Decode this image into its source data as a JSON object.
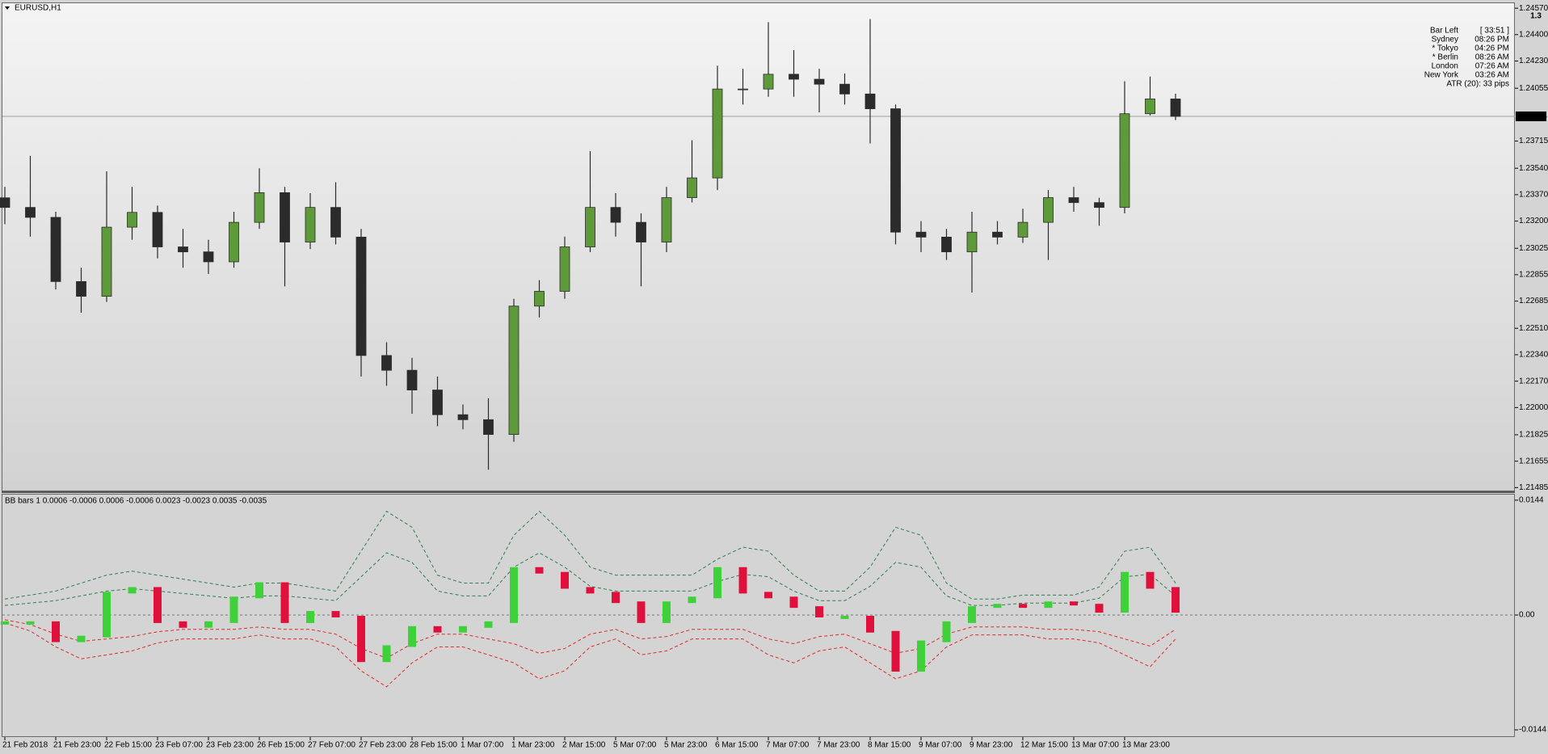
{
  "chart_data": [
    {
      "type": "candlestick",
      "title": "EURUSD,H1",
      "open": [
        1.2335,
        1.23288,
        1.23224,
        1.22811,
        1.22716,
        1.23161,
        1.23256,
        1.23034,
        1.23002,
        1.22938,
        1.23192,
        1.23383,
        1.23065,
        1.23288,
        1.23097,
        1.22335,
        1.2224,
        1.22113,
        1.21954,
        1.21922,
        1.21827,
        1.22653,
        1.22748,
        1.23034,
        1.23288,
        1.23192,
        1.23065,
        1.23351,
        1.23478,
        1.2405,
        1.2405,
        1.24145,
        1.24113,
        1.24081,
        1.24018,
        1.23923,
        1.23129,
        1.23097,
        1.23002,
        1.23129,
        1.23097,
        1.23192,
        1.23351,
        1.23319,
        1.23288,
        1.23891,
        1.23986
      ],
      "high": [
        1.2342,
        1.2362,
        1.2326,
        1.229,
        1.2352,
        1.2342,
        1.233,
        1.2315,
        1.2308,
        1.2326,
        1.2354,
        1.2342,
        1.2338,
        1.2345,
        1.2315,
        1.2242,
        1.2232,
        1.222,
        1.2202,
        1.2206,
        1.227,
        1.2282,
        1.231,
        1.2365,
        1.2338,
        1.2325,
        1.2342,
        1.2372,
        1.242,
        1.2418,
        1.2448,
        1.243,
        1.2418,
        1.2415,
        1.245,
        1.2395,
        1.232,
        1.2315,
        1.2326,
        1.232,
        1.2328,
        1.234,
        1.2342,
        1.2335,
        1.241,
        1.2413,
        1.2402
      ],
      "low": [
        1.2318,
        1.231,
        1.2276,
        1.2261,
        1.2268,
        1.2308,
        1.2296,
        1.229,
        1.2286,
        1.229,
        1.2315,
        1.2278,
        1.2302,
        1.2305,
        1.222,
        1.2214,
        1.2196,
        1.2188,
        1.2186,
        1.216,
        1.2178,
        1.2258,
        1.227,
        1.23,
        1.231,
        1.2278,
        1.23,
        1.2332,
        1.234,
        1.2395,
        1.24,
        1.24,
        1.239,
        1.2395,
        1.237,
        1.2305,
        1.23,
        1.2295,
        1.2274,
        1.2305,
        1.2306,
        1.2295,
        1.2326,
        1.2317,
        1.2325,
        1.2388,
        1.2385
      ],
      "close": [
        1.23288,
        1.23224,
        1.22811,
        1.22716,
        1.23161,
        1.23256,
        1.23034,
        1.23002,
        1.22938,
        1.23192,
        1.23383,
        1.23065,
        1.23288,
        1.23097,
        1.22335,
        1.2224,
        1.22113,
        1.21954,
        1.21922,
        1.21827,
        1.22653,
        1.22748,
        1.23034,
        1.23288,
        1.23192,
        1.23065,
        1.23351,
        1.23478,
        1.2405,
        1.2405,
        1.24145,
        1.24113,
        1.24081,
        1.24018,
        1.23923,
        1.23129,
        1.23097,
        1.23002,
        1.23129,
        1.23097,
        1.23192,
        1.23351,
        1.23319,
        1.23288,
        1.23891,
        1.23986,
        1.23874
      ],
      "bull_color": "#5f9a3a",
      "bear_color": "#2b2b2b",
      "ylim": [
        1.21466,
        1.24602
      ],
      "yticks": [
        {
          "value": 1.2457,
          "label": "1.24570"
        },
        {
          "value": 1.244,
          "label": "1.24400"
        },
        {
          "value": 1.2423,
          "label": "1.24230"
        },
        1.24055,
        1.23715,
        {
          "value": 1.2354,
          "label": "1.23540"
        },
        {
          "value": 1.2337,
          "label": "1.23370"
        },
        {
          "value": 1.232,
          "label": "1.23200"
        },
        1.23025,
        1.22855,
        1.22685,
        {
          "value": 1.2251,
          "label": "1.22510"
        },
        {
          "value": 1.2234,
          "label": "1.22340"
        },
        {
          "value": 1.2217,
          "label": "1.22170"
        },
        {
          "value": 1.22,
          "label": "1.22000"
        },
        1.21825,
        1.21655,
        1.21485
      ],
      "current_price": 1.23874,
      "info": {
        "big_label": "1.3",
        "timer_label": "Bar Left",
        "timer": "[ 33:51 ]",
        "sessions": [
          {
            "label": "Sydney",
            "time": "08:26 PM",
            "color": "#a8a8a8"
          },
          {
            "label": "* Tokyo",
            "time": "04:26 PM",
            "color": "#ff0000"
          },
          {
            "label": "* Berlin",
            "time": "08:26 AM",
            "color": "#ff0000"
          },
          {
            "label": "London",
            "time": "07:26 AM",
            "color": "#a8a8a8"
          },
          {
            "label": "New York",
            "time": "03:26 AM",
            "color": "#a8a8a8"
          }
        ],
        "atr": "ATR (20): 33 pips"
      }
    },
    {
      "type": "bar",
      "title": "BB bars 1 0.0006 -0.0006 0.0006 -0.0006 0.0023 -0.0023 0.0035 -0.0035",
      "categories": [
        "21 Feb 2018",
        null,
        "21 Feb 23:00",
        null,
        "22 Feb 15:00",
        null,
        "23 Feb 07:00",
        null,
        "23 Feb 23:00",
        null,
        "26 Feb 15:00",
        null,
        "27 Feb 07:00",
        null,
        "27 Feb 23:00",
        null,
        "28 Feb 15:00",
        null,
        "1 Mar 07:00",
        null,
        "1 Mar 23:00",
        null,
        "2 Mar 15:00",
        null,
        "5 Mar 07:00",
        null,
        "5 Mar 23:00",
        null,
        "6 Mar 15:00",
        null,
        "7 Mar 07:00",
        null,
        "7 Mar 23:00",
        null,
        "8 Mar 15:00",
        null,
        "9 Mar 07:00",
        null,
        "9 Mar 23:00",
        null,
        "12 Mar 15:00",
        null,
        "13 Mar 07:00",
        null,
        "13 Mar 23:00",
        null,
        null
      ],
      "values": [
        -0.0009,
        -0.0009,
        -0.0033,
        -0.0027,
        0.0028,
        0.0034,
        -0.0009,
        -0.0015,
        -0.0009,
        0.0022,
        0.004,
        -0.0009,
        0.0004,
        -0.0002,
        -0.0058,
        -0.0039,
        -0.0015,
        -0.0021,
        -0.0015,
        -0.0009,
        0.0059,
        0.0053,
        0.0034,
        0.0028,
        0.0016,
        -0.0009,
        0.0016,
        0.0022,
        0.0059,
        0.0028,
        0.0022,
        0.001,
        -0.0002,
        -0.0002,
        -0.0021,
        -0.007,
        -0.0033,
        -0.0009,
        0.001,
        0.0013,
        0.001,
        0.0016,
        0.0013,
        0.0004,
        0.0053,
        0.0034,
        0.0004
      ],
      "up_color": "#3fd13a",
      "down_color": "#e0103c",
      "bands": [
        {
          "color": "#2e7d4f",
          "values": [
            0.002,
            0.0025,
            0.003,
            0.004,
            0.005,
            0.0055,
            0.005,
            0.0045,
            0.004,
            0.0035,
            0.004,
            0.004,
            0.0035,
            0.003,
            0.008,
            0.013,
            0.011,
            0.005,
            0.004,
            0.004,
            0.01,
            0.013,
            0.01,
            0.006,
            0.005,
            0.005,
            0.005,
            0.005,
            0.007,
            0.0085,
            0.008,
            0.005,
            0.003,
            0.003,
            0.006,
            0.011,
            0.01,
            0.004,
            0.002,
            0.002,
            0.0025,
            0.0025,
            0.0025,
            0.0035,
            0.008,
            0.0085,
            0.004
          ]
        },
        {
          "color": "#2e7d4f",
          "values": [
            0.0012,
            0.0015,
            0.0018,
            0.0024,
            0.003,
            0.0033,
            0.003,
            0.0027,
            0.0024,
            0.0021,
            0.0024,
            0.0024,
            0.0021,
            0.0018,
            0.0048,
            0.0078,
            0.0066,
            0.003,
            0.0024,
            0.0024,
            0.006,
            0.0078,
            0.006,
            0.0036,
            0.003,
            0.003,
            0.003,
            0.003,
            0.0042,
            0.0051,
            0.0048,
            0.003,
            0.0018,
            0.0018,
            0.0036,
            0.0066,
            0.006,
            0.0024,
            0.0012,
            0.0012,
            0.0015,
            0.0015,
            0.0015,
            0.0021,
            0.0048,
            0.0051,
            0.0024
          ]
        },
        {
          "color": "#e02828",
          "values": [
            -0.0006,
            -0.0012,
            -0.0024,
            -0.0033,
            -0.003,
            -0.0027,
            -0.0021,
            -0.0018,
            -0.0018,
            -0.0018,
            -0.0015,
            -0.0018,
            -0.0018,
            -0.0024,
            -0.0042,
            -0.0054,
            -0.0036,
            -0.0024,
            -0.0024,
            -0.003,
            -0.0036,
            -0.0048,
            -0.0042,
            -0.0024,
            -0.0018,
            -0.003,
            -0.0027,
            -0.0018,
            -0.0018,
            -0.0018,
            -0.003,
            -0.0036,
            -0.0027,
            -0.0024,
            -0.0036,
            -0.0048,
            -0.0042,
            -0.0024,
            -0.0015,
            -0.0015,
            -0.0015,
            -0.0018,
            -0.0018,
            -0.0021,
            -0.003,
            -0.0039,
            -0.0018
          ]
        },
        {
          "color": "#e02828",
          "values": [
            -0.001,
            -0.002,
            -0.004,
            -0.0055,
            -0.005,
            -0.0045,
            -0.0035,
            -0.003,
            -0.003,
            -0.003,
            -0.0025,
            -0.003,
            -0.003,
            -0.004,
            -0.007,
            -0.009,
            -0.006,
            -0.004,
            -0.004,
            -0.005,
            -0.006,
            -0.008,
            -0.007,
            -0.004,
            -0.003,
            -0.005,
            -0.0045,
            -0.003,
            -0.003,
            -0.003,
            -0.005,
            -0.006,
            -0.0045,
            -0.004,
            -0.006,
            -0.008,
            -0.007,
            -0.004,
            -0.0025,
            -0.0025,
            -0.0025,
            -0.003,
            -0.003,
            -0.0035,
            -0.005,
            -0.0065,
            -0.003
          ]
        }
      ],
      "ylim": [
        -0.0152,
        0.0151
      ],
      "yticks": [
        0.0144,
        {
          "value": 0,
          "label": "0.00"
        },
        -0.0144
      ]
    }
  ]
}
